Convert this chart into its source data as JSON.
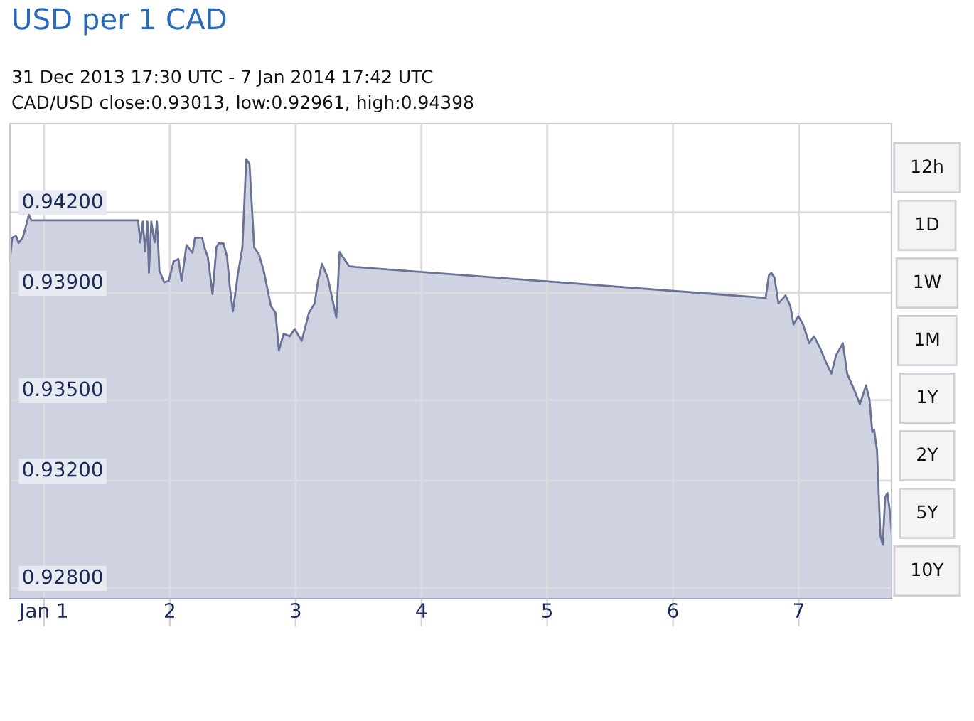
{
  "chart_data": {
    "type": "area",
    "title": "USD per 1 CAD",
    "subtitle": "31 Dec 2013 17:30 UTC - 7 Jan 2014 17:42 UTC",
    "annotations": [
      "CAD/USD close:0.93013, low:0.92961, high:0.94398",
      "12h",
      "1D",
      "1W",
      "1M",
      "1Y",
      "2Y",
      "5Y",
      "10Y"
    ],
    "x": [
      "2013-12-31T17:30",
      "2013-12-31T17:57",
      "2013-12-31T18:41",
      "2013-12-31T19:08",
      "2013-12-31T19:57",
      "2013-12-31T20:23",
      "2013-12-31T21:07",
      "2013-12-31T21:35",
      "2014-01-01T17:57",
      "2014-01-01T18:23",
      "2014-01-01T18:50",
      "2014-01-01T19:18",
      "2014-01-01T19:44",
      "2014-01-01T20:01",
      "2014-01-01T20:28",
      "2014-01-01T21:06",
      "2014-01-01T21:33",
      "2014-01-01T22:01",
      "2014-01-01T22:55",
      "2014-01-01T23:48",
      "2014-01-02T00:44",
      "2014-01-02T01:38",
      "2014-01-02T02:15",
      "2014-01-02T03:11",
      "2014-01-02T03:53",
      "2014-01-02T04:20",
      "2014-01-02T04:48",
      "2014-01-02T06:10",
      "2014-01-02T06:36",
      "2014-01-02T07:15",
      "2014-01-02T08:09",
      "2014-01-02T08:53",
      "2014-01-02T09:19",
      "2014-01-02T10:14",
      "2014-01-02T10:56",
      "2014-01-02T11:24",
      "2014-01-02T12:02",
      "2014-01-02T12:57",
      "2014-01-02T13:51",
      "2014-01-02T14:35",
      "2014-01-02T15:12",
      "2014-01-02T16:06",
      "2014-01-02T17:01",
      "2014-01-02T17:55",
      "2014-01-02T19:17",
      "2014-01-02T20:10",
      "2014-01-02T20:49",
      "2014-01-02T21:43",
      "2014-01-02T22:53",
      "2014-01-02T23:49",
      "2014-01-03T01:10",
      "2014-01-03T02:32",
      "2014-01-03T03:37",
      "2014-01-03T04:19",
      "2014-01-03T05:03",
      "2014-01-03T06:08",
      "2014-01-03T07:46",
      "2014-01-03T08:23",
      "2014-01-03T09:35",
      "2014-01-03T10:13",
      "2014-01-03T11:34",
      "2014-01-06T17:41",
      "2014-01-06T18:18",
      "2014-01-06T18:46",
      "2014-01-06T19:23",
      "2014-01-06T20:07",
      "2014-01-06T21:29",
      "2014-01-06T22:23",
      "2014-01-06T23:00",
      "2014-01-06T23:55",
      "2014-01-07T00:49",
      "2014-01-07T01:59",
      "2014-01-07T02:55",
      "2014-01-07T04:04",
      "2014-01-07T05:10",
      "2014-01-07T06:14",
      "2014-01-07T07:08",
      "2014-01-07T08:25",
      "2014-01-07T09:14",
      "2014-01-07T10:35",
      "2014-01-07T11:40",
      "2014-01-07T12:50",
      "2014-01-07T13:29",
      "2014-01-07T14:02",
      "2014-01-07T14:23",
      "2014-01-07T14:56",
      "2014-01-07T15:34",
      "2014-01-07T16:01",
      "2014-01-07T16:29",
      "2014-01-07T16:55",
      "2014-01-07T17:23",
      "2014-01-07T17:42"
    ],
    "series": [
      {
        "color": "#6a7296",
        "values": [
          0.94026,
          0.94106,
          0.94111,
          0.94085,
          0.94106,
          0.94137,
          0.9419,
          0.9417,
          0.9417,
          0.94087,
          0.94165,
          0.94054,
          0.94165,
          0.93975,
          0.94165,
          0.94087,
          0.94165,
          0.93982,
          0.93939,
          0.93944,
          0.94017,
          0.94026,
          0.93944,
          0.94078,
          0.9406,
          0.94049,
          0.94105,
          0.94105,
          0.94069,
          0.94034,
          0.93895,
          0.94069,
          0.94084,
          0.94084,
          0.94034,
          0.9393,
          0.9383,
          0.93965,
          0.94069,
          0.94398,
          0.9438,
          0.94069,
          0.94043,
          0.93982,
          0.93851,
          0.93825,
          0.93686,
          0.93747,
          0.93738,
          0.93765,
          0.93721,
          0.93825,
          0.9386,
          0.93948,
          0.94008,
          0.93956,
          0.93808,
          0.94052,
          0.94017,
          0.93999,
          0.93996,
          0.93881,
          0.93965,
          0.93974,
          0.93956,
          0.9386,
          0.9389,
          0.93851,
          0.93782,
          0.93813,
          0.93782,
          0.93712,
          0.93738,
          0.93694,
          0.93642,
          0.93599,
          0.93668,
          0.93712,
          0.93599,
          0.93538,
          0.93485,
          0.93555,
          0.93503,
          0.93381,
          0.9339,
          0.93311,
          0.92997,
          0.92961,
          0.93137,
          0.93154,
          0.93085,
          0.93013
        ]
      }
    ],
    "xlim": [
      "2013-12-31T17:30",
      "2014-01-07T17:42"
    ],
    "xticks": [
      {
        "value": "2014-01-01",
        "label": "Jan 1"
      },
      {
        "value": "2014-01-02",
        "label": "2"
      },
      {
        "value": "2014-01-03",
        "label": "3"
      },
      {
        "value": "2014-01-04",
        "label": "4"
      },
      {
        "value": "2014-01-05",
        "label": "5"
      },
      {
        "value": "2014-01-06",
        "label": "6"
      },
      {
        "value": "2014-01-07",
        "label": "7"
      }
    ],
    "ylim": [
      0.9276,
      0.9453
    ],
    "yticks": [
      {
        "value": 0.942,
        "label": "0.94200"
      },
      {
        "value": 0.939,
        "label": "0.93900"
      },
      {
        "value": 0.935,
        "label": "0.93500"
      },
      {
        "value": 0.932,
        "label": "0.93200"
      },
      {
        "value": 0.928,
        "label": "0.92800"
      }
    ],
    "grid": true
  }
}
